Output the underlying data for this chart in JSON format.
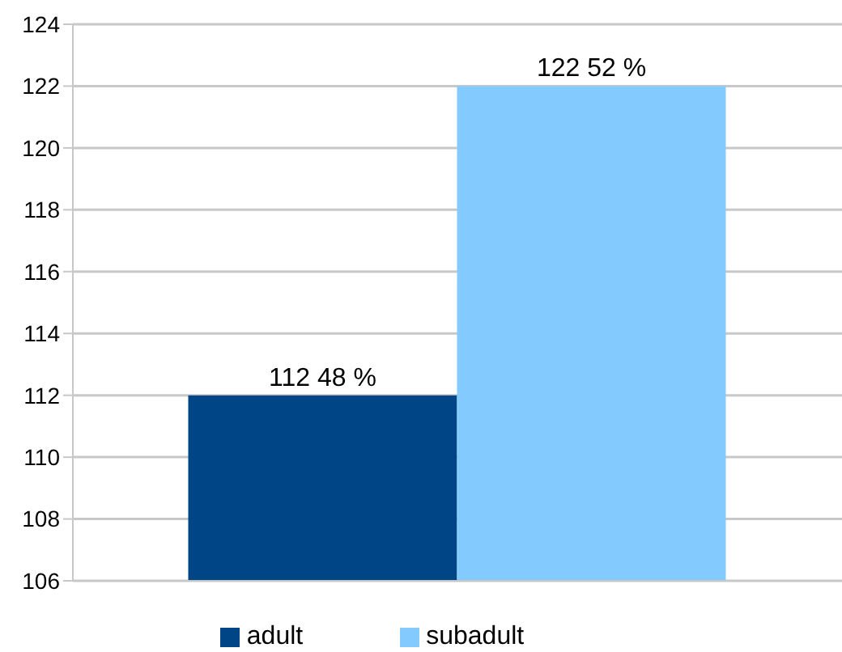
{
  "chart_data": {
    "type": "bar",
    "categories": [
      null
    ],
    "series": [
      {
        "name": "adult",
        "color": "#004586",
        "values": [
          112
        ],
        "value_labels": [
          "112 48 %"
        ]
      },
      {
        "name": "subadult",
        "color": "#83caff",
        "values": [
          122
        ],
        "value_labels": [
          "122 52 %"
        ]
      }
    ],
    "ylim": [
      106,
      124
    ],
    "yticks": [
      106,
      108,
      110,
      112,
      114,
      116,
      118,
      120,
      122,
      124
    ],
    "grid": "y",
    "legend": "bottom"
  }
}
